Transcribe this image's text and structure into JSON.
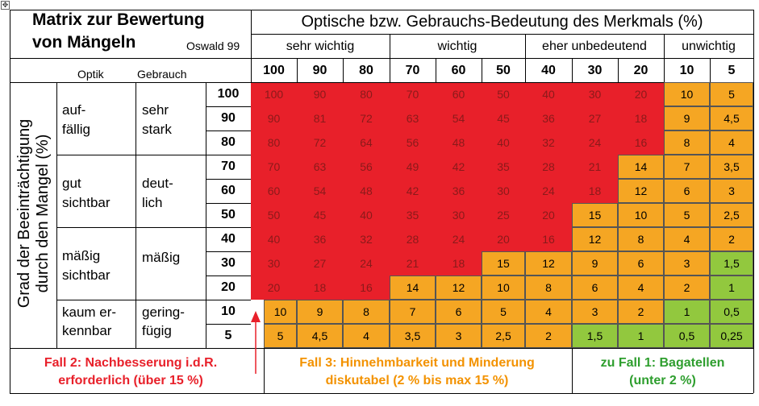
{
  "title": [
    "Matrix zur Bewertung",
    "von Mängeln"
  ],
  "author": "Oswald 99",
  "top_header": "Optische bzw. Gebrauchs-Bedeutung des Merkmals (%)",
  "column_groups": [
    "sehr wichtig",
    "wichtig",
    "eher unbedeutend",
    "unwichtig"
  ],
  "col_values": [
    "100",
    "90",
    "80",
    "70",
    "60",
    "50",
    "40",
    "30",
    "20",
    "10",
    "5"
  ],
  "left_headers": {
    "optik": "Optik",
    "gebrauch": "Gebrauch"
  },
  "vertical_label": [
    "Grad der Beeinträchtigung",
    "durch den Mangel (%)"
  ],
  "row_groups": [
    {
      "optik": [
        "auf-",
        "fällig"
      ],
      "gebrauch": [
        "sehr",
        "stark"
      ]
    },
    {
      "optik": [
        "gut",
        "sichtbar"
      ],
      "gebrauch": [
        "deut-",
        "lich"
      ]
    },
    {
      "optik": [
        "mäßig",
        "sichtbar"
      ],
      "gebrauch": [
        "mäßig"
      ]
    },
    {
      "optik": [
        "kaum er-",
        "kennbar"
      ],
      "gebrauch": [
        "gering-",
        "fügig"
      ]
    }
  ],
  "row_values": [
    "100",
    "90",
    "80",
    "70",
    "60",
    "50",
    "40",
    "30",
    "20",
    "10",
    "5"
  ],
  "matrix": [
    [
      "100",
      "90",
      "80",
      "70",
      "60",
      "50",
      "40",
      "30",
      "20",
      "10",
      "5"
    ],
    [
      "90",
      "81",
      "72",
      "63",
      "54",
      "45",
      "36",
      "27",
      "18",
      "9",
      "4,5"
    ],
    [
      "80",
      "72",
      "64",
      "56",
      "48",
      "40",
      "32",
      "24",
      "16",
      "8",
      "4"
    ],
    [
      "70",
      "63",
      "56",
      "49",
      "42",
      "35",
      "28",
      "21",
      "14",
      "7",
      "3,5"
    ],
    [
      "60",
      "54",
      "48",
      "42",
      "36",
      "30",
      "24",
      "18",
      "12",
      "6",
      "3"
    ],
    [
      "50",
      "45",
      "40",
      "35",
      "30",
      "25",
      "20",
      "15",
      "10",
      "5",
      "2,5"
    ],
    [
      "40",
      "36",
      "32",
      "28",
      "24",
      "20",
      "16",
      "12",
      "8",
      "4",
      "2"
    ],
    [
      "30",
      "27",
      "24",
      "21",
      "18",
      "15",
      "12",
      "9",
      "6",
      "3",
      "1,5"
    ],
    [
      "20",
      "18",
      "16",
      "14",
      "12",
      "10",
      "8",
      "6",
      "4",
      "2",
      "1"
    ],
    [
      "10",
      "9",
      "8",
      "7",
      "6",
      "5",
      "4",
      "3",
      "2",
      "1",
      "0,5"
    ],
    [
      "5",
      "4,5",
      "4",
      "3,5",
      "3",
      "2,5",
      "2",
      "1,5",
      "1",
      "0,5",
      "0,25"
    ]
  ],
  "categories": {
    "fall2": [
      "Fall 2: Nachbesserung i.d.R.",
      "erforderlich (über 15 %)"
    ],
    "fall3": [
      "Fall 3: Hinnehmbarkeit und Minderung",
      "diskutabel (2 % bis max 15 %)"
    ],
    "fall1": [
      "zu Fall 1: Bagatellen",
      "(unter 2 %)"
    ]
  },
  "colors": {
    "red": "#e8202a",
    "orange": "#f5a623",
    "green": "#92c83e",
    "text_red": "#e8202a",
    "text_orange": "#f39200",
    "text_green": "#2e9e2e"
  }
}
